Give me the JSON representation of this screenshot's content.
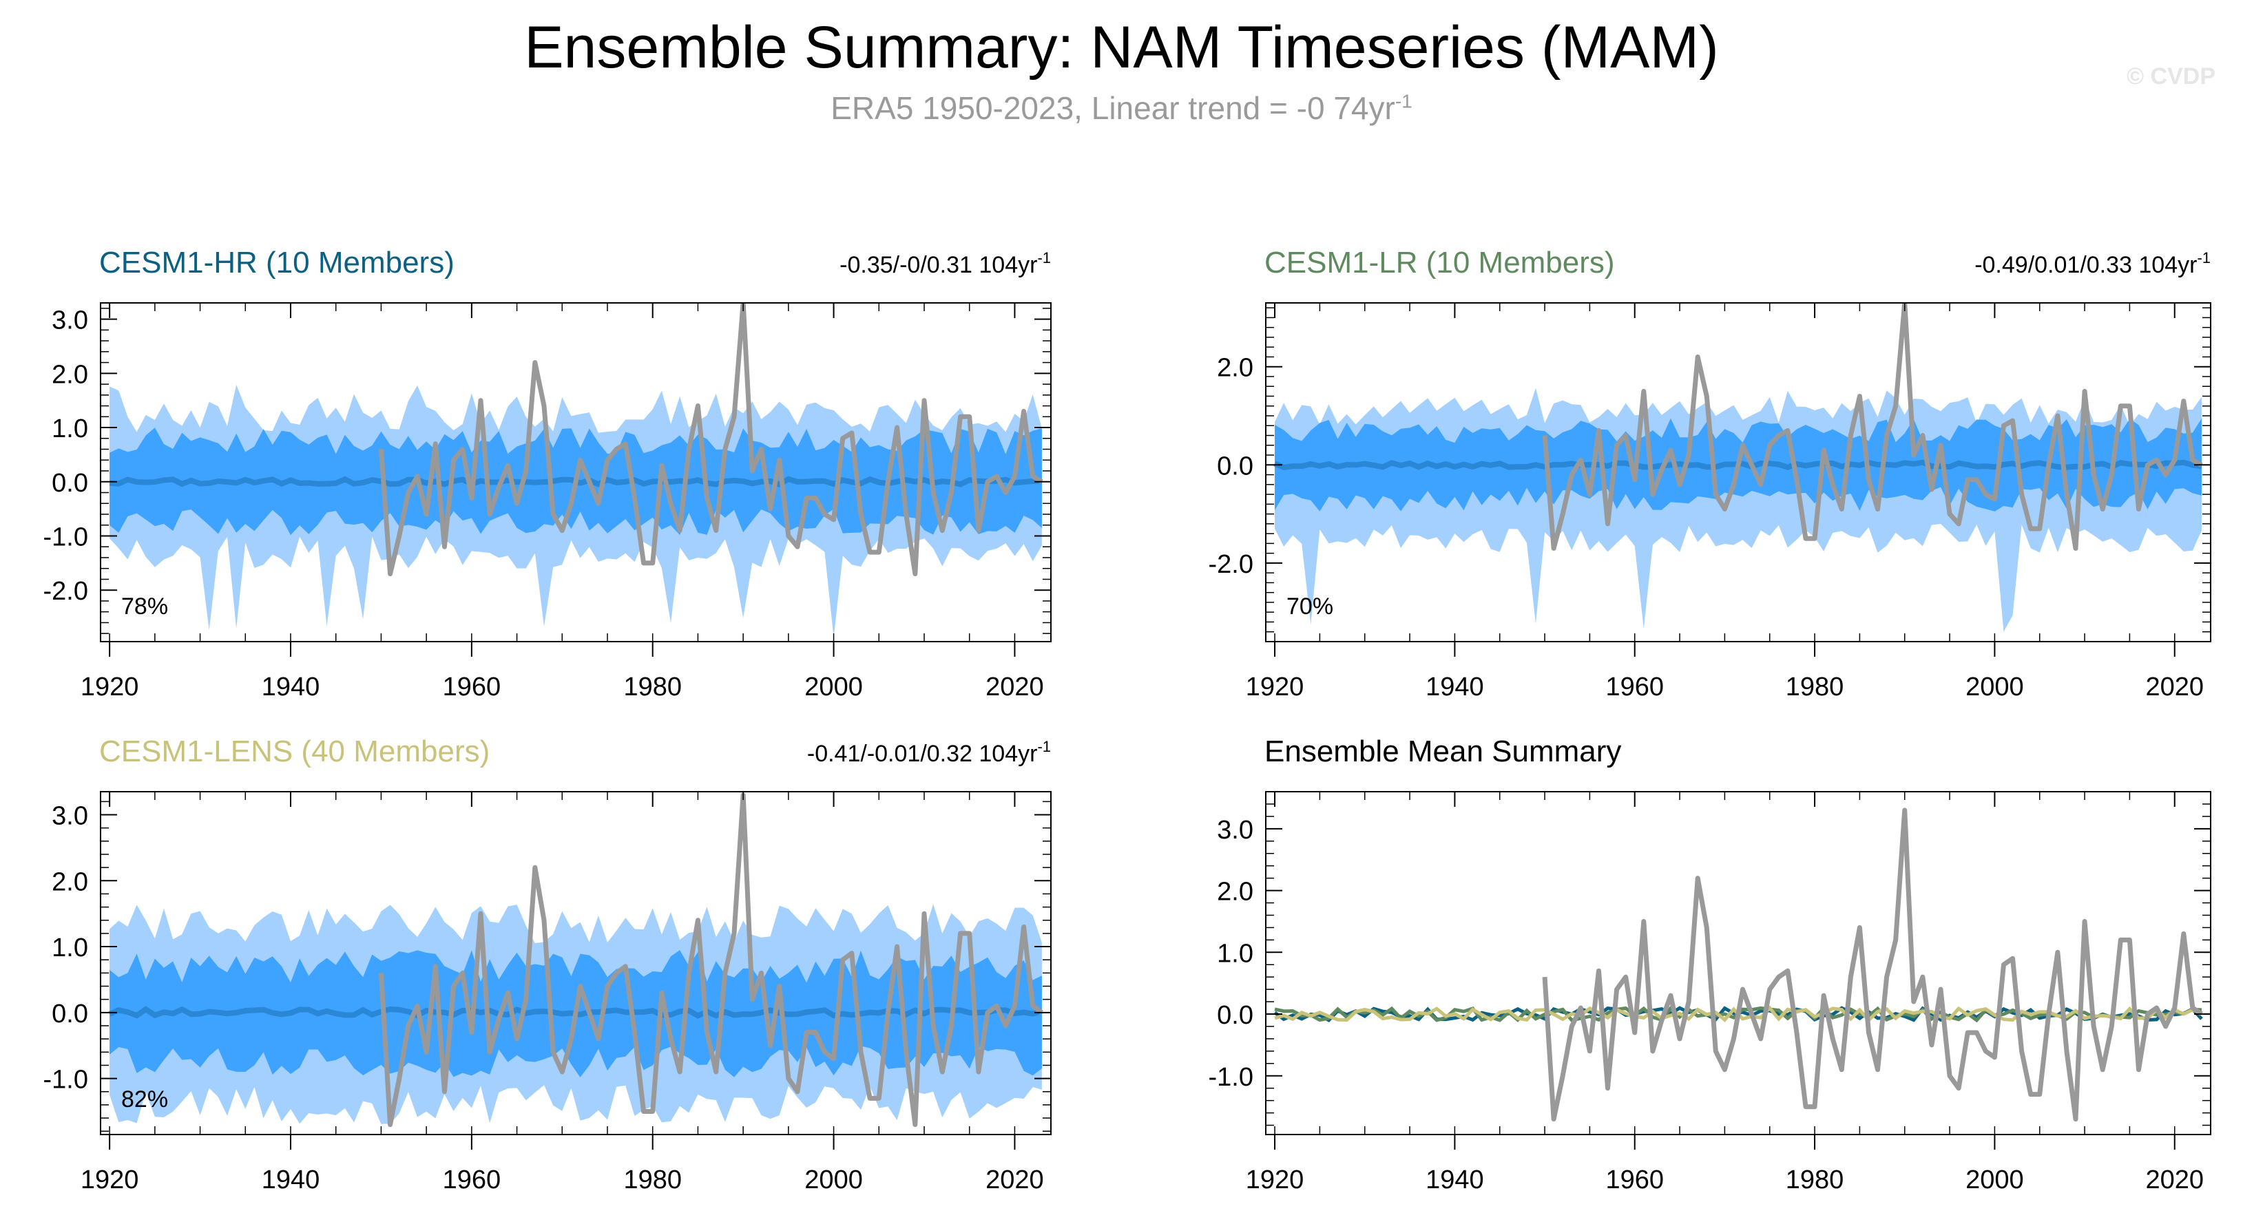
{
  "header": {
    "title": "Ensemble Summary: NAM Timeseries (MAM)",
    "subtitle": "ERA5 1950-2023, Linear trend = -0 74yr",
    "subtitle_sup": "-1",
    "credit": "© CVDP"
  },
  "colors": {
    "outer_band": "#a3d0ff",
    "inner_band": "#3ea2ff",
    "ens_mean": "#2a87d6",
    "obs": "#999999",
    "hr": "#0c6182",
    "lr": "#5f8a5f",
    "lens": "#c9c37a"
  },
  "obs_series": {
    "name": "ERA5",
    "x": [
      1950,
      1951,
      1952,
      1953,
      1954,
      1955,
      1956,
      1957,
      1958,
      1959,
      1960,
      1961,
      1962,
      1963,
      1964,
      1965,
      1966,
      1967,
      1968,
      1969,
      1970,
      1971,
      1972,
      1973,
      1974,
      1975,
      1976,
      1977,
      1978,
      1979,
      1980,
      1981,
      1982,
      1983,
      1984,
      1985,
      1986,
      1987,
      1988,
      1989,
      1990,
      1991,
      1992,
      1993,
      1994,
      1995,
      1996,
      1997,
      1998,
      1999,
      2000,
      2001,
      2002,
      2003,
      2004,
      2005,
      2006,
      2007,
      2008,
      2009,
      2010,
      2011,
      2012,
      2013,
      2014,
      2015,
      2016,
      2017,
      2018,
      2019,
      2020,
      2021,
      2022,
      2023
    ],
    "y": [
      0.6,
      -1.7,
      -1.0,
      -0.2,
      0.1,
      -0.6,
      0.7,
      -1.2,
      0.4,
      0.6,
      -0.3,
      1.5,
      -0.6,
      -0.1,
      0.3,
      -0.4,
      0.2,
      2.2,
      1.4,
      -0.6,
      -0.9,
      -0.4,
      0.4,
      0.0,
      -0.4,
      0.4,
      0.6,
      0.7,
      -0.3,
      -1.5,
      -1.5,
      0.3,
      -0.4,
      -0.9,
      0.6,
      1.4,
      -0.3,
      -0.9,
      0.6,
      1.2,
      3.3,
      0.2,
      0.6,
      -0.5,
      0.4,
      -1.0,
      -1.2,
      -0.3,
      -0.3,
      -0.6,
      -0.7,
      0.8,
      0.9,
      -0.6,
      -1.3,
      -1.3,
      0.0,
      1.0,
      -0.6,
      -1.7,
      1.5,
      -0.2,
      -0.9,
      -0.2,
      1.2,
      1.2,
      -0.9,
      0.0,
      0.1,
      -0.2,
      0.1,
      1.3,
      0.1,
      0.0
    ]
  },
  "chart_data": [
    {
      "type": "area",
      "title": "CESM1-HR (10 Members)",
      "trend_label": "-0.35/-0/0.31 104yr",
      "trend_sup": "-1",
      "percent_label": "78%",
      "x_range": [
        1920,
        2023
      ],
      "xlim": [
        1919,
        2024
      ],
      "ylim": [
        -2.95,
        3.3
      ],
      "yticks": [
        3.0,
        2.0,
        1.0,
        0.0,
        -1.0,
        -2.0
      ],
      "ytick_labels": [
        "3.0",
        "2.0",
        "1.0",
        "0.0",
        "-1.0",
        "-2.0"
      ],
      "xticks": [
        1920,
        1940,
        1960,
        1980,
        2000,
        2020
      ],
      "xtick_labels": [
        "1920",
        "1940",
        "1960",
        "1980",
        "2000",
        "2020"
      ],
      "series": [
        {
          "name": "outer_range",
          "kind": "band",
          "approx_upper": 1.2,
          "approx_lower": -1.3,
          "peak_upper": 1.8,
          "peak_lower": -2.9
        },
        {
          "name": "inner_range",
          "kind": "band",
          "approx_upper": 0.75,
          "approx_lower": -0.75
        },
        {
          "name": "ensemble_mean",
          "kind": "line",
          "approx_value": 0.0
        },
        {
          "name": "ERA5",
          "kind": "line",
          "values_from": "obs_series"
        }
      ]
    },
    {
      "type": "area",
      "title": "CESM1-LR (10 Members)",
      "trend_label": "-0.49/0.01/0.33 104yr",
      "trend_sup": "-1",
      "percent_label": "70%",
      "x_range": [
        1920,
        2023
      ],
      "xlim": [
        1919,
        2024
      ],
      "ylim": [
        -3.6,
        3.3
      ],
      "yticks": [
        2.0,
        0.0,
        -2.0
      ],
      "ytick_labels": [
        "2.0",
        "0.0",
        "-2.0"
      ],
      "xticks": [
        1920,
        1940,
        1960,
        1980,
        2000,
        2020
      ],
      "xtick_labels": [
        "1920",
        "1940",
        "1960",
        "1980",
        "2000",
        "2020"
      ],
      "series": [
        {
          "name": "outer_range",
          "kind": "band",
          "approx_upper": 1.1,
          "approx_lower": -1.5,
          "peak_upper": 1.6,
          "peak_lower": -3.4
        },
        {
          "name": "inner_range",
          "kind": "band",
          "approx_upper": 0.7,
          "approx_lower": -0.7
        },
        {
          "name": "ensemble_mean",
          "kind": "line",
          "approx_value": 0.0
        },
        {
          "name": "ERA5",
          "kind": "line",
          "values_from": "obs_series"
        }
      ]
    },
    {
      "type": "area",
      "title": "CESM1-LENS (40 Members)",
      "trend_label": "-0.41/-0.01/0.32 104yr",
      "trend_sup": "-1",
      "percent_label": "82%",
      "x_range": [
        1920,
        2023
      ],
      "xlim": [
        1919,
        2024
      ],
      "ylim": [
        -1.85,
        3.35
      ],
      "yticks": [
        3.0,
        2.0,
        1.0,
        0.0,
        -1.0
      ],
      "ytick_labels": [
        "3.0",
        "2.0",
        "1.0",
        "0.0",
        "-1.0"
      ],
      "xticks": [
        1920,
        1940,
        1960,
        1980,
        2000,
        2020
      ],
      "xtick_labels": [
        "1920",
        "1940",
        "1960",
        "1980",
        "2000",
        "2020"
      ],
      "series": [
        {
          "name": "outer_range",
          "kind": "band",
          "approx_upper": 1.35,
          "approx_lower": -1.4
        },
        {
          "name": "inner_range",
          "kind": "band",
          "approx_upper": 0.7,
          "approx_lower": -0.75
        },
        {
          "name": "ensemble_mean",
          "kind": "line",
          "approx_value": 0.0
        },
        {
          "name": "ERA5",
          "kind": "line",
          "values_from": "obs_series"
        }
      ]
    },
    {
      "type": "line",
      "title": "Ensemble Mean Summary",
      "trend_label": "",
      "trend_sup": "",
      "percent_label": "",
      "x_range": [
        1920,
        2023
      ],
      "xlim": [
        1919,
        2024
      ],
      "ylim": [
        -1.95,
        3.6
      ],
      "yticks": [
        3.0,
        2.0,
        1.0,
        0.0,
        -1.0
      ],
      "ytick_labels": [
        "3.0",
        "2.0",
        "1.0",
        "0.0",
        "-1.0"
      ],
      "xticks": [
        1920,
        1940,
        1960,
        1980,
        2000,
        2020
      ],
      "xtick_labels": [
        "1920",
        "1940",
        "1960",
        "1980",
        "2000",
        "2020"
      ],
      "series": [
        {
          "name": "CESM1-HR",
          "kind": "line",
          "approx_value": 0.0
        },
        {
          "name": "CESM1-LR",
          "kind": "line",
          "approx_value": 0.0
        },
        {
          "name": "CESM1-LENS",
          "kind": "line",
          "approx_value": 0.0
        },
        {
          "name": "ERA5",
          "kind": "line",
          "values_from": "obs_series"
        }
      ]
    }
  ]
}
